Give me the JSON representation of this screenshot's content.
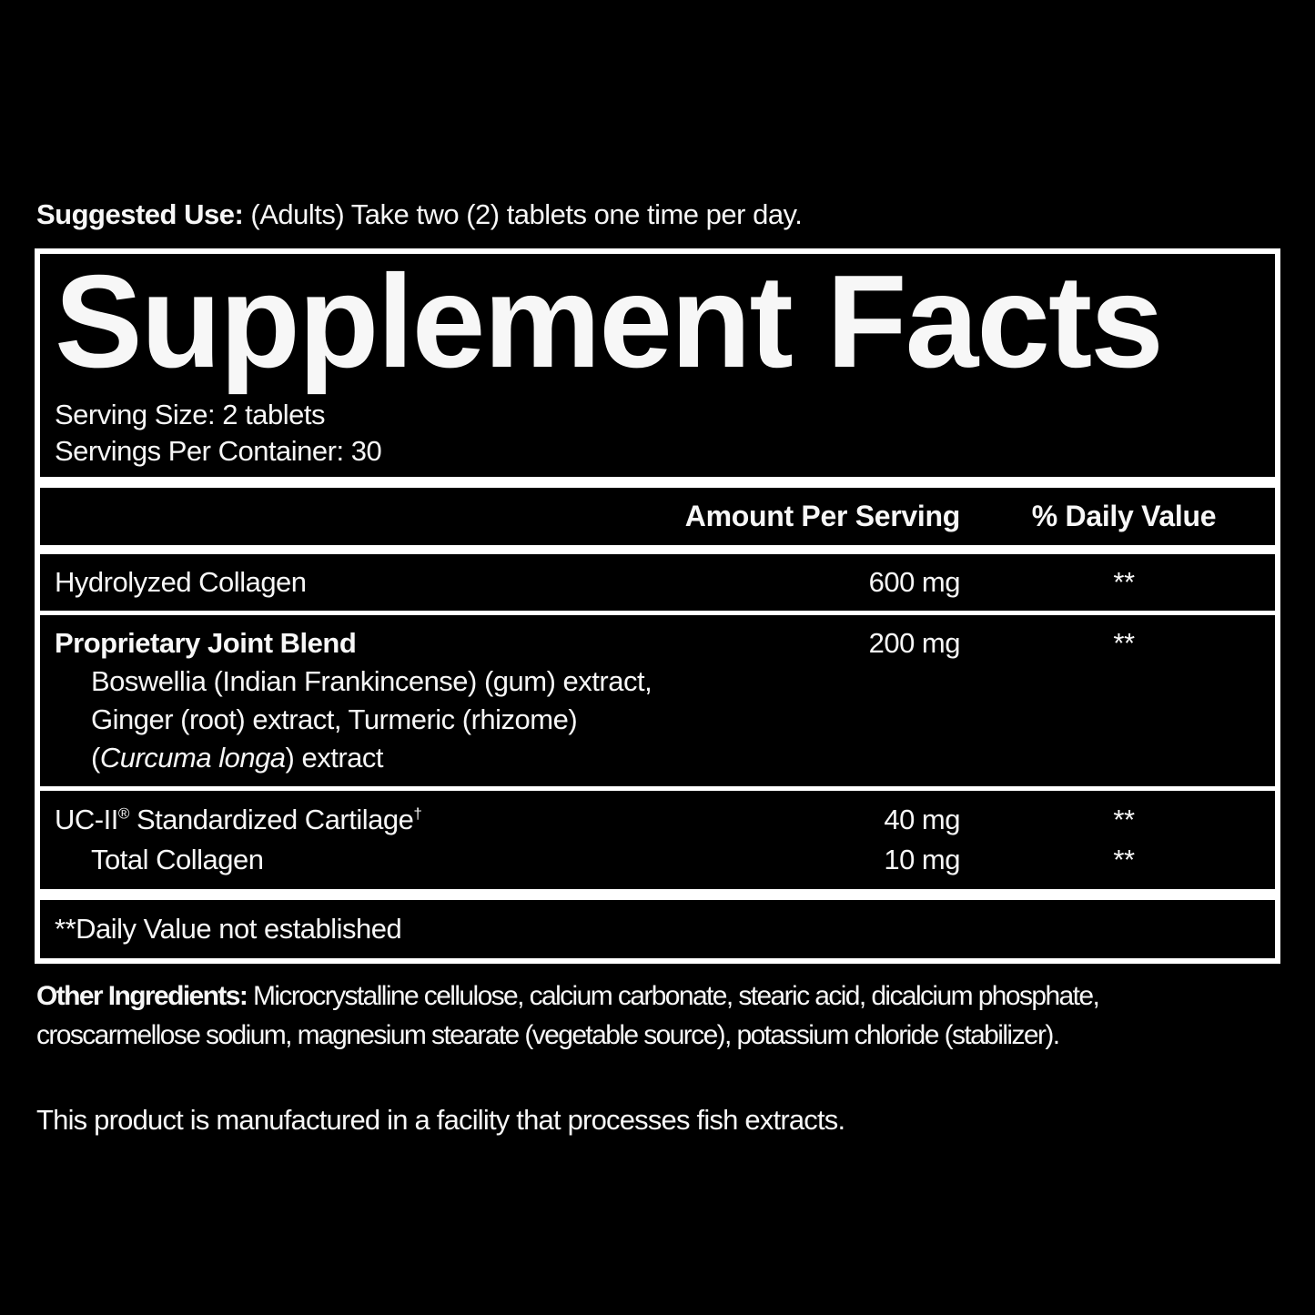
{
  "colors": {
    "background": "#000000",
    "text": "#f7f7f7",
    "rule": "#ffffff"
  },
  "suggested_use": {
    "label": "Suggested Use:",
    "text": " (Adults) Take two (2) tablets one time per day."
  },
  "panel": {
    "title": "Supplement Facts",
    "serving_size": "Serving Size: 2 tablets",
    "servings_per_container": "Servings Per Container: 30",
    "header": {
      "amount": "Amount Per Serving",
      "daily_value": "% Daily Value"
    },
    "rows": {
      "collagen": {
        "name": "Hydrolyzed Collagen",
        "amount": "600 mg",
        "daily_value": "**"
      },
      "joint_blend": {
        "name": "Proprietary Joint Blend",
        "amount": "200 mg",
        "daily_value": "**",
        "sub1": "Boswellia (Indian Frankincense) (gum) extract,",
        "sub2": "Ginger (root) extract, Turmeric (rhizome)",
        "sub3_open": "(",
        "sub3_italic": "Curcuma longa",
        "sub3_close": ") extract"
      },
      "ucii": {
        "name": "UC-II",
        "reg_mark": "®",
        "name_rest": " Standardized Cartilage",
        "dagger": "†",
        "amount": "40 mg",
        "daily_value": "**",
        "sub_name": "Total Collagen",
        "sub_amount": "10 mg",
        "sub_daily_value": "**"
      }
    },
    "footnote": "**Daily Value not established"
  },
  "other_ingredients": {
    "label": "Other Ingredients:",
    "text": " Microcrystalline cellulose, calcium carbonate, stearic acid, dicalcium phosphate,\ncroscarmellose sodium, magnesium stearate (vegetable source), potassium chloride (stabilizer)."
  },
  "manufacturing_note": "This product is manufactured in a facility that processes fish extracts."
}
